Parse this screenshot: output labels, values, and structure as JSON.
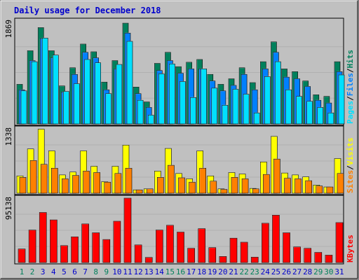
{
  "title": "Daily usage for December 2018",
  "colors": {
    "hits": "#00805c",
    "files": "#0080ff",
    "pages": "#00e0ff",
    "visits": "#ffff00",
    "sites": "#ff8000",
    "kbytes": "#ff0000",
    "weekday_label": "#0000cc",
    "weekend_label": "#00805c",
    "slash": "#000000"
  },
  "right_labels": {
    "top": [
      "Hits",
      "/",
      "Files",
      "/",
      "Pages"
    ],
    "middle": [
      "Visits",
      "/",
      "Sites"
    ],
    "bottom": [
      "KBytes"
    ]
  },
  "chart_data": {
    "type": "bar",
    "title": "Daily usage for December 2018",
    "categories": [
      "1",
      "2",
      "3",
      "4",
      "5",
      "6",
      "7",
      "8",
      "9",
      "10",
      "11",
      "12",
      "13",
      "14",
      "15",
      "16",
      "17",
      "18",
      "19",
      "20",
      "21",
      "22",
      "23",
      "24",
      "25",
      "26",
      "27",
      "28",
      "29",
      "30",
      "31"
    ],
    "weekend_days": [
      "1",
      "2",
      "8",
      "9",
      "15",
      "16",
      "22",
      "23",
      "29",
      "30"
    ],
    "panels": [
      {
        "name": "hits-files-pages",
        "ymax_label": "1869",
        "ymax": 1869,
        "series": [
          {
            "name": "Hits",
            "values": [
              720,
              1330,
              1750,
              1330,
              690,
              1020,
              1450,
              1310,
              760,
              1150,
              1830,
              670,
              400,
              1100,
              1300,
              1040,
              1120,
              1170,
              900,
              720,
              820,
              1020,
              750,
              1130,
              1490,
              1000,
              950,
              780,
              530,
              500,
              1130
            ]
          },
          {
            "name": "Files",
            "values": [
              620,
              1150,
              1550,
              1200,
              580,
              900,
              1300,
              1200,
              620,
              1000,
              1650,
              550,
              300,
              970,
              1150,
              920,
              1000,
              1000,
              780,
              600,
              700,
              900,
              620,
              1000,
              1300,
              850,
              820,
              680,
              430,
              380,
              950
            ]
          },
          {
            "name": "Pages",
            "values": [
              600,
              1130,
              1560,
              1250,
              590,
              730,
              1170,
              1110,
              550,
              1080,
              1500,
              430,
              160,
              910,
              1090,
              770,
              480,
              1000,
              650,
              340,
              630,
              540,
              200,
              860,
              1130,
              620,
              500,
              410,
              300,
              200,
              890
            ]
          }
        ]
      },
      {
        "name": "visits-sites",
        "ymax_label": "1338",
        "ymax": 1338,
        "series": [
          {
            "name": "Visits",
            "values": [
              360,
              920,
              1330,
              880,
              380,
              440,
              880,
              560,
              240,
              560,
              1000,
              70,
              90,
              460,
              930,
              410,
              300,
              880,
              360,
              90,
              430,
              400,
              100,
              650,
              1180,
              420,
              380,
              340,
              170,
              130,
              720
            ]
          },
          {
            "name": "Sites",
            "values": [
              330,
              680,
              600,
              520,
              300,
              370,
              460,
              430,
              230,
              410,
              520,
              70,
              90,
              330,
              580,
              320,
              230,
              520,
              250,
              80,
              330,
              300,
              90,
              390,
              710,
              310,
              300,
              260,
              150,
              130,
              410
            ]
          }
        ]
      },
      {
        "name": "kbytes",
        "ymax_label": "95138",
        "ymax": 95138,
        "series": [
          {
            "name": "KBytes",
            "values": [
              20000,
              48000,
              74000,
              63000,
              25000,
              38000,
              57000,
              44000,
              34000,
              61000,
              95138,
              26000,
              7500,
              48000,
              55000,
              45000,
              21000,
              50000,
              22000,
              9000,
              36000,
              30000,
              8000,
              58000,
              70000,
              44000,
              23000,
              21000,
              15000,
              11000,
              59000
            ]
          }
        ]
      }
    ]
  }
}
